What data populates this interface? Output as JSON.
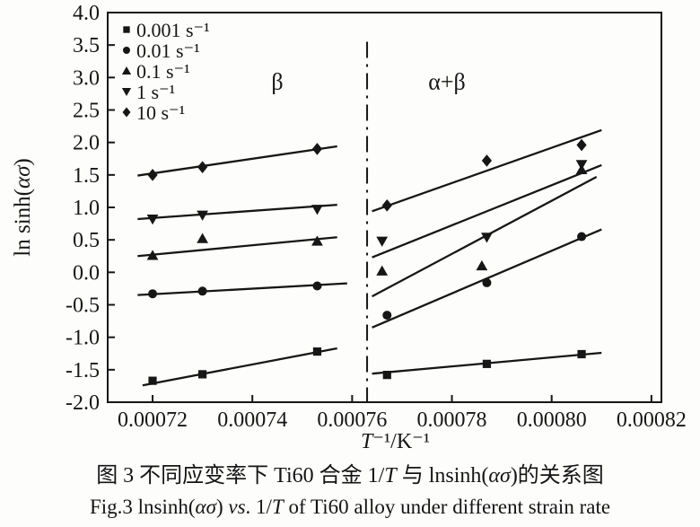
{
  "chart_data": {
    "type": "scatter",
    "title": "",
    "xlabel": "T⁻¹/K⁻¹",
    "ylabel": "ln sinh(ασ)",
    "xlabel_parts": [
      {
        "t": "T",
        "i": true
      },
      {
        "t": "⁻¹",
        "i": false
      },
      {
        "t": "/K",
        "i": false
      },
      {
        "t": "⁻¹",
        "i": false
      }
    ],
    "ylabel_parts": [
      {
        "t": "ln sinh(",
        "i": false
      },
      {
        "t": "ασ",
        "i": true
      },
      {
        "t": ")",
        "i": false
      }
    ],
    "xlim": [
      0.000711,
      0.000822
    ],
    "ylim": [
      -2.0,
      4.0
    ],
    "x_ticks": [
      0.00072,
      0.00074,
      0.00076,
      0.00078,
      0.0008,
      0.00082
    ],
    "x_tick_labels": [
      "0.00072",
      "0.00074",
      "0.00076",
      "0.00078",
      "0.00080",
      "0.00082"
    ],
    "y_ticks": [
      4.0,
      3.5,
      3.0,
      2.5,
      2.0,
      1.5,
      1.0,
      0.5,
      0.0,
      -0.5,
      -1.0,
      -1.5,
      -2.0
    ],
    "y_tick_labels": [
      "4.0",
      "3.5",
      "3.0",
      "2.5",
      "2.0",
      "1.5",
      "1.0",
      "0.5",
      "0.0",
      "-0.5",
      "-1.0",
      "-1.5",
      "-2.0"
    ],
    "grid": false,
    "legend_position": "top-left-inside",
    "legend": [
      {
        "marker": "square",
        "label": "0.001 s⁻¹"
      },
      {
        "marker": "circle",
        "label": "0.01 s⁻¹"
      },
      {
        "marker": "triangle-up",
        "label": "0.1 s⁻¹"
      },
      {
        "marker": "triangle-down",
        "label": "1 s⁻¹"
      },
      {
        "marker": "diamond",
        "label": "10 s⁻¹"
      }
    ],
    "phase_boundary": {
      "x": 0.000763,
      "y_top": 3.55,
      "y_bottom": -2.0,
      "style": "dash-dot"
    },
    "region_labels": [
      {
        "text": "β",
        "x": 0.000745,
        "y": 2.94
      },
      {
        "text": "α+β",
        "x": 0.000779,
        "y": 2.94
      }
    ],
    "series": [
      {
        "name": "0.001 s⁻¹",
        "marker": "square",
        "points": [
          [
            0.00072,
            -1.67
          ],
          [
            0.00073,
            -1.57
          ],
          [
            0.000753,
            -1.22
          ],
          [
            0.000767,
            -1.58
          ],
          [
            0.000787,
            -1.41
          ],
          [
            0.000806,
            -1.26
          ]
        ],
        "fit_lines": [
          {
            "x1": 0.000718,
            "y1": -1.74,
            "x2": 0.000757,
            "y2": -1.17
          },
          {
            "x1": 0.000764,
            "y1": -1.56,
            "x2": 0.00081,
            "y2": -1.24
          }
        ]
      },
      {
        "name": "0.01 s⁻¹",
        "marker": "circle",
        "points": [
          [
            0.00072,
            -0.33
          ],
          [
            0.00073,
            -0.29
          ],
          [
            0.000753,
            -0.21
          ],
          [
            0.000767,
            -0.66
          ],
          [
            0.000787,
            -0.16
          ],
          [
            0.000806,
            0.55
          ]
        ],
        "fit_lines": [
          {
            "x1": 0.000717,
            "y1": -0.35,
            "x2": 0.000759,
            "y2": -0.17
          },
          {
            "x1": 0.000764,
            "y1": -0.85,
            "x2": 0.00081,
            "y2": 0.66
          }
        ]
      },
      {
        "name": "0.1 s⁻¹",
        "marker": "triangle-up",
        "points": [
          [
            0.00072,
            0.26
          ],
          [
            0.00073,
            0.52
          ],
          [
            0.000753,
            0.48
          ],
          [
            0.000766,
            0.02
          ],
          [
            0.000786,
            0.1
          ],
          [
            0.000806,
            1.58
          ]
        ],
        "fit_lines": [
          {
            "x1": 0.000717,
            "y1": 0.25,
            "x2": 0.000757,
            "y2": 0.54
          },
          {
            "x1": 0.000764,
            "y1": -0.37,
            "x2": 0.000809,
            "y2": 1.47
          }
        ]
      },
      {
        "name": "1 s⁻¹",
        "marker": "triangle-down",
        "points": [
          [
            0.00072,
            0.82
          ],
          [
            0.00073,
            0.88
          ],
          [
            0.000753,
            0.97
          ],
          [
            0.000766,
            0.48
          ],
          [
            0.000787,
            0.54
          ],
          [
            0.000806,
            1.66
          ]
        ],
        "fit_lines": [
          {
            "x1": 0.000717,
            "y1": 0.82,
            "x2": 0.000757,
            "y2": 1.04
          },
          {
            "x1": 0.000764,
            "y1": 0.23,
            "x2": 0.00081,
            "y2": 1.65
          }
        ]
      },
      {
        "name": "10 s⁻¹",
        "marker": "diamond",
        "points": [
          [
            0.00072,
            1.5
          ],
          [
            0.00073,
            1.62
          ],
          [
            0.000753,
            1.9
          ],
          [
            0.000767,
            1.03
          ],
          [
            0.000787,
            1.72
          ],
          [
            0.000806,
            1.96
          ]
        ],
        "fit_lines": [
          {
            "x1": 0.000717,
            "y1": 1.49,
            "x2": 0.000757,
            "y2": 1.94
          },
          {
            "x1": 0.000764,
            "y1": 0.94,
            "x2": 0.00081,
            "y2": 2.19
          }
        ]
      }
    ],
    "ink_color": "#161616"
  },
  "caption": {
    "line1_parts": [
      {
        "t": "图 3  不同应变率下 Ti60 合金 1/",
        "i": false
      },
      {
        "t": "T",
        "i": true
      },
      {
        "t": " 与 lnsinh(",
        "i": false
      },
      {
        "t": "ασ",
        "i": true
      },
      {
        "t": ")的关系图",
        "i": false
      }
    ],
    "line2_parts": [
      {
        "t": "Fig.3  lnsinh(",
        "i": false
      },
      {
        "t": "ασ",
        "i": true
      },
      {
        "t": ") ",
        "i": false
      },
      {
        "t": "vs",
        "i": true
      },
      {
        "t": ". 1/",
        "i": false
      },
      {
        "t": "T",
        "i": true
      },
      {
        "t": " of Ti60 alloy under different strain rate",
        "i": false
      }
    ]
  }
}
